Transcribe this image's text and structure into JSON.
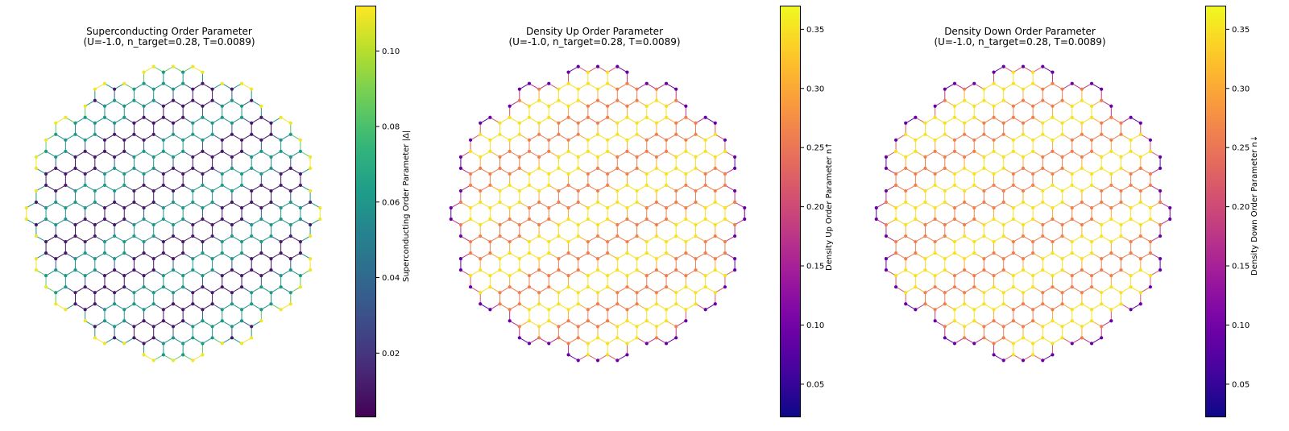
{
  "chart_data": [
    {
      "type": "scatter",
      "title": "Superconducting Order Parameter",
      "subtitle": "(U=-1.0, n_target=0.28, T=0.0089)",
      "colorbar": {
        "label": "Superconducting Order Parameter |Δ|",
        "cmap": "viridis",
        "range": [
          0.003,
          0.112
        ],
        "ticks": [
          0.02,
          0.04,
          0.06,
          0.08,
          0.1
        ],
        "tick_labels": [
          "0.02",
          "0.04",
          "0.06",
          "0.08",
          "0.10"
        ]
      },
      "site_values": {
        "low": 0.01,
        "ring": 0.06,
        "edge": 0.11
      },
      "grid": false
    },
    {
      "type": "scatter",
      "title": "Density Up Order Parameter",
      "subtitle": "(U=-1.0, n_target=0.28, T=0.0089)",
      "colorbar": {
        "label": "Density Up Order Parameter n↑",
        "cmap": "plasma",
        "range": [
          0.022,
          0.37
        ],
        "ticks": [
          0.05,
          0.1,
          0.15,
          0.2,
          0.25,
          0.3,
          0.35
        ],
        "tick_labels": [
          "0.05",
          "0.10",
          "0.15",
          "0.20",
          "0.25",
          "0.30",
          "0.35"
        ]
      },
      "site_values": {
        "low": 0.26,
        "ring": 0.35,
        "edge": 0.09
      },
      "grid": false
    },
    {
      "type": "scatter",
      "title": "Density Down Order Parameter",
      "subtitle": "(U=-1.0, n_target=0.28, T=0.0089)",
      "colorbar": {
        "label": "Density Down Order Parameter n↓",
        "cmap": "plasma",
        "range": [
          0.022,
          0.37
        ],
        "ticks": [
          0.05,
          0.1,
          0.15,
          0.2,
          0.25,
          0.3,
          0.35
        ],
        "tick_labels": [
          "0.05",
          "0.10",
          "0.15",
          "0.20",
          "0.25",
          "0.30",
          "0.35"
        ]
      },
      "site_values": {
        "low": 0.26,
        "ring": 0.35,
        "edge": 0.09
      },
      "grid": false
    }
  ]
}
